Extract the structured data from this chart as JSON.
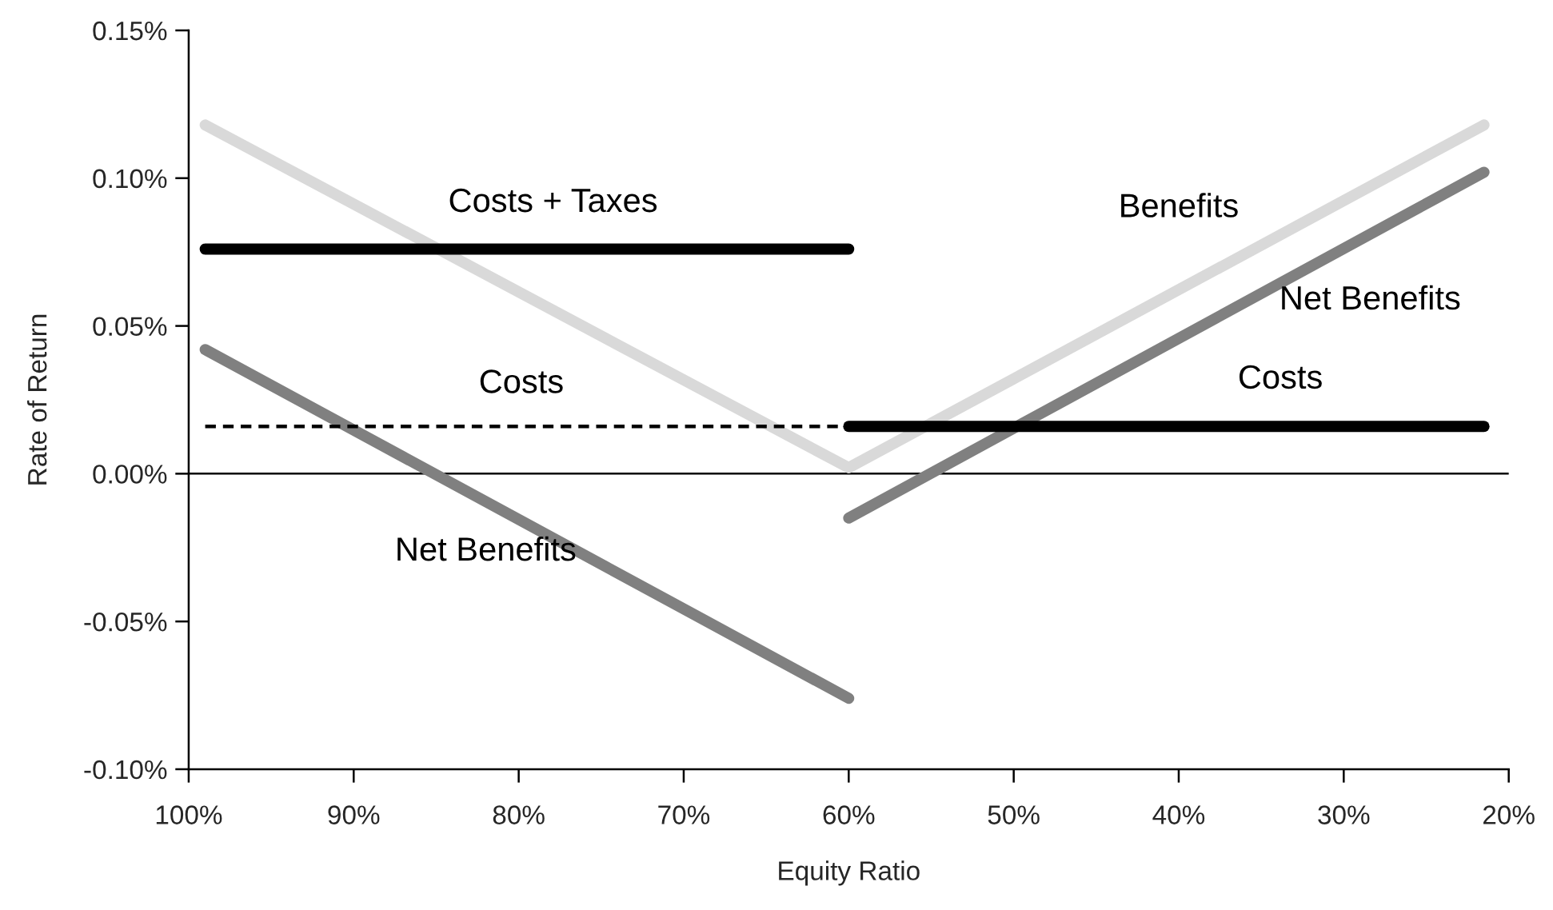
{
  "chart_data": {
    "type": "line",
    "xlabel": "Equity Ratio",
    "ylabel": "Rate of Return",
    "xlim": [
      100,
      20
    ],
    "xticks": [
      {
        "value": 100,
        "label": "100%"
      },
      {
        "value": 90,
        "label": "90%"
      },
      {
        "value": 80,
        "label": "80%"
      },
      {
        "value": 70,
        "label": "70%"
      },
      {
        "value": 60,
        "label": "60%"
      },
      {
        "value": 50,
        "label": "50%"
      },
      {
        "value": 40,
        "label": "40%"
      },
      {
        "value": 30,
        "label": "30%"
      },
      {
        "value": 20,
        "label": "20%"
      }
    ],
    "ylim": [
      -0.1,
      0.15
    ],
    "yticks": [
      {
        "value": -0.1,
        "label": "-0.10%"
      },
      {
        "value": -0.05,
        "label": "-0.05%"
      },
      {
        "value": 0,
        "label": "0.00%"
      },
      {
        "value": 0.05,
        "label": "0.05%"
      },
      {
        "value": 0.1,
        "label": "0.10%"
      },
      {
        "value": 0.15,
        "label": "0.15%"
      }
    ],
    "grid": false,
    "legend": false,
    "ref_lines": [
      {
        "axis": "y",
        "value": 0,
        "color": "#000000"
      }
    ],
    "series": [
      {
        "name": "Benefits",
        "color": "#d9d9d9",
        "x": [
          99,
          60,
          21.5
        ],
        "values": [
          0.118,
          0.002,
          0.118
        ],
        "line_style": "solid"
      },
      {
        "name": "Net Benefits",
        "color": "#808080",
        "x": [
          99,
          60
        ],
        "values": [
          0.042,
          -0.076
        ],
        "line_style": "solid"
      },
      {
        "name": "Net Benefits",
        "color": "#808080",
        "x": [
          60,
          21.5
        ],
        "values": [
          -0.015,
          0.102
        ],
        "line_style": "solid"
      },
      {
        "name": "Costs + Taxes",
        "color": "#000000",
        "x": [
          99,
          60
        ],
        "values": [
          0.076,
          0.076
        ],
        "line_style": "solid"
      },
      {
        "name": "Costs",
        "color": "#000000",
        "x": [
          99,
          60
        ],
        "values": [
          0.016,
          0.016
        ],
        "line_style": "dashed"
      },
      {
        "name": "Costs",
        "color": "#000000",
        "x": [
          60,
          21.5
        ],
        "values": [
          0.016,
          0.016
        ],
        "line_style": "solid"
      }
    ]
  }
}
